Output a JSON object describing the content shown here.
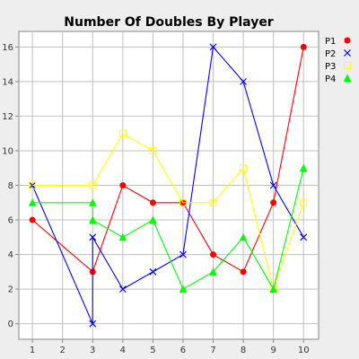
{
  "chart_data": {
    "type": "line",
    "title": "Number Of Doubles By Player",
    "xlabel": "",
    "ylabel": "",
    "x_ticks": [
      1,
      2,
      3,
      4,
      5,
      6,
      7,
      8,
      9,
      10
    ],
    "y_ticks": [
      0,
      2,
      4,
      6,
      8,
      10,
      12,
      14,
      16
    ],
    "xlim": [
      0.55,
      10.5
    ],
    "ylim": [
      -0.9,
      16.9
    ],
    "grid": true,
    "legend_position": "right",
    "series": [
      {
        "name": "P1",
        "color": "#ff0000",
        "marker": "circle",
        "points": [
          [
            1,
            6
          ],
          [
            3,
            3
          ],
          [
            4,
            8
          ],
          [
            5,
            7
          ],
          [
            6,
            7
          ],
          [
            7,
            4
          ],
          [
            8,
            3
          ],
          [
            9,
            7
          ],
          [
            10,
            16
          ]
        ]
      },
      {
        "name": "P2",
        "color": "#0000ff",
        "marker": "x",
        "points": [
          [
            1,
            8
          ],
          [
            3,
            0
          ],
          [
            3,
            5
          ],
          [
            4,
            2
          ],
          [
            5,
            3
          ],
          [
            6,
            4
          ],
          [
            7,
            16
          ],
          [
            8,
            14
          ],
          [
            9,
            8
          ],
          [
            10,
            5
          ]
        ]
      },
      {
        "name": "P3",
        "color": "#ffff00",
        "marker": "square",
        "points": [
          [
            1,
            8
          ],
          [
            3,
            8
          ],
          [
            4,
            11
          ],
          [
            5,
            10
          ],
          [
            6,
            7
          ],
          [
            7,
            7
          ],
          [
            8,
            9
          ],
          [
            9,
            2
          ],
          [
            10,
            7
          ]
        ]
      },
      {
        "name": "P4",
        "color": "#00ff00",
        "marker": "triangle",
        "points": [
          [
            1,
            7
          ],
          [
            3,
            7
          ],
          [
            3,
            6
          ],
          [
            4,
            5
          ],
          [
            5,
            6
          ],
          [
            6,
            2
          ],
          [
            7,
            3
          ],
          [
            8,
            5
          ],
          [
            9,
            2
          ],
          [
            10,
            9
          ]
        ]
      }
    ]
  }
}
